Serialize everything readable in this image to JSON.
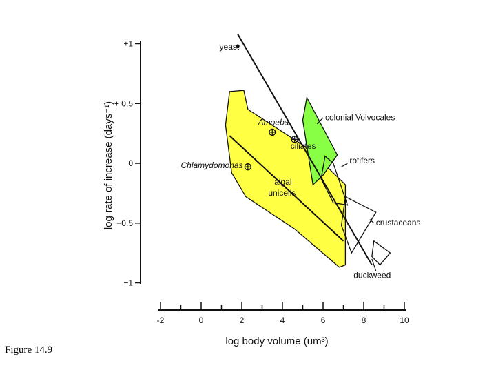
{
  "figure_label": "Figure 14.9",
  "colors": {
    "algal_fill": "#ffff44",
    "volvocales_fill": "#88ff44",
    "outline": "#111111"
  },
  "chart_data": {
    "type": "scatter",
    "xlabel": "log body volume (um³)",
    "ylabel": "log rate of increase (days⁻¹)",
    "xlim": [
      -2,
      10
    ],
    "ylim": [
      -1,
      1
    ],
    "x_ticks": [
      "-2",
      "0",
      "2",
      "4",
      "6",
      "8",
      "10"
    ],
    "y_ticks": [
      "+1",
      "+ 0.5",
      "0",
      "−0.5",
      "−1"
    ],
    "points": [
      {
        "name": "yeast",
        "x": 1.8,
        "y": 0.98
      },
      {
        "name": "Amoeba",
        "x": 3.5,
        "y": 0.26
      },
      {
        "name": "ciliates",
        "x": 4.6,
        "y": 0.2
      },
      {
        "name": "Chlamydomonas",
        "x": 2.3,
        "y": -0.03
      }
    ],
    "regions": [
      {
        "name": "algal unicells",
        "fill": "algal",
        "polygon": [
          [
            1.4,
            0.6
          ],
          [
            2.1,
            0.61
          ],
          [
            2.3,
            0.45
          ],
          [
            5.3,
            0.12
          ],
          [
            7.1,
            -0.18
          ],
          [
            7.1,
            -0.85
          ],
          [
            6.8,
            -0.87
          ],
          [
            4.6,
            -0.55
          ],
          [
            2.2,
            -0.28
          ],
          [
            1.5,
            -0.08
          ],
          [
            1.2,
            0.32
          ]
        ]
      },
      {
        "name": "colonial Volvocales",
        "fill": "volvocales",
        "polygon": [
          [
            5.2,
            0.55
          ],
          [
            6.7,
            0.07
          ],
          [
            6.0,
            -0.1
          ],
          [
            5.5,
            -0.18
          ],
          [
            5.0,
            0.36
          ]
        ]
      },
      {
        "name": "rotifers",
        "polygon": [
          [
            6.1,
            0.06
          ],
          [
            6.5,
            0.0
          ],
          [
            7.2,
            -0.35
          ],
          [
            6.5,
            -0.33
          ],
          [
            5.9,
            -0.13
          ]
        ]
      },
      {
        "name": "crustaceans",
        "polygon": [
          [
            7.1,
            -0.28
          ],
          [
            8.6,
            -0.41
          ],
          [
            7.4,
            -0.75
          ],
          [
            6.9,
            -0.52
          ]
        ]
      },
      {
        "name": "duckweed",
        "polygon": [
          [
            8.5,
            -0.65
          ],
          [
            9.3,
            -0.75
          ],
          [
            8.8,
            -0.85
          ],
          [
            8.4,
            -0.78
          ]
        ]
      }
    ],
    "lines": [
      {
        "name": "algal unicells trend",
        "x": [
          1.4,
          7.0
        ],
        "y": [
          0.23,
          -0.65
        ]
      },
      {
        "name": "overall trend",
        "x": [
          1.8,
          8.4
        ],
        "y": [
          1.08,
          -0.85
        ]
      }
    ],
    "annotations": [
      {
        "text": "yeast",
        "x": 0.9,
        "y": 0.95
      },
      {
        "text": "Amoeba",
        "x": 2.8,
        "y": 0.32,
        "italic": true
      },
      {
        "text": "ciliates",
        "x": 4.4,
        "y": 0.12
      },
      {
        "text": "Chlamydomonas",
        "x": -1.0,
        "y": -0.04,
        "italic": true
      },
      {
        "text": "algal",
        "x": 3.6,
        "y": -0.18
      },
      {
        "text": "unicells",
        "x": 3.3,
        "y": -0.27
      },
      {
        "text": "colonial Volvocales",
        "x": 6.1,
        "y": 0.36
      },
      {
        "text": "rotifers",
        "x": 7.3,
        "y": 0.0
      },
      {
        "text": "crustaceans",
        "x": 8.6,
        "y": -0.52
      },
      {
        "text": "duckweed",
        "x": 7.5,
        "y": -0.96
      }
    ],
    "leaders": [
      {
        "label": "colonial Volvocales",
        "x": [
          6.0,
          5.7
        ],
        "y": [
          0.38,
          0.33
        ]
      },
      {
        "label": "rotifers",
        "x": [
          7.2,
          6.9
        ],
        "y": [
          0.0,
          -0.03
        ]
      },
      {
        "label": "crustaceans",
        "x": [
          8.5,
          8.3
        ],
        "y": [
          -0.5,
          -0.47
        ]
      },
      {
        "label": "duckweed",
        "x": [
          8.6,
          8.4
        ],
        "y": [
          -0.9,
          -0.8
        ]
      }
    ]
  }
}
